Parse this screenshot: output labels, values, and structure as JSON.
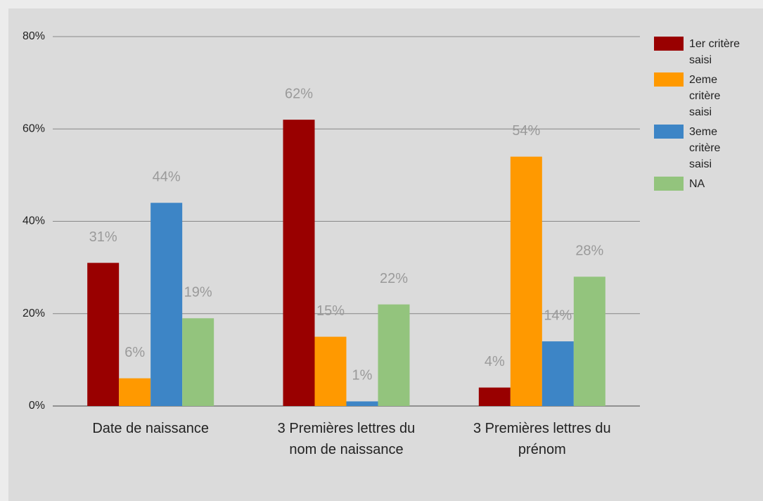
{
  "chart_data": {
    "type": "bar",
    "categories": [
      "Date de naissance",
      "3 Premières lettres du nom de naissance",
      "3 Premières lettres du prénom"
    ],
    "series": [
      {
        "name": "1er critère saisi",
        "color": "#990000",
        "values": [
          31,
          62,
          4
        ],
        "value_labels": [
          "31%",
          "62%",
          "4%"
        ]
      },
      {
        "name": "2eme critère saisi",
        "color": "#ff9900",
        "values": [
          6,
          15,
          54
        ],
        "value_labels": [
          "6%",
          "15%",
          "54%"
        ]
      },
      {
        "name": "3eme critère saisi",
        "color": "#3d85c6",
        "values": [
          44,
          1,
          14
        ],
        "value_labels": [
          "44%",
          "1%",
          "14%"
        ]
      },
      {
        "name": "NA",
        "color": "#93c47d",
        "values": [
          19,
          22,
          28
        ],
        "value_labels": [
          "19%",
          "22%",
          "28%"
        ]
      }
    ],
    "ylim": [
      0,
      80
    ],
    "yticks": [
      {
        "value": 0,
        "label": "0%"
      },
      {
        "value": 20,
        "label": "20%"
      },
      {
        "value": 40,
        "label": "40%"
      },
      {
        "value": 60,
        "label": "60%"
      },
      {
        "value": 80,
        "label": "80%"
      }
    ],
    "grid": true,
    "legend": "right"
  }
}
